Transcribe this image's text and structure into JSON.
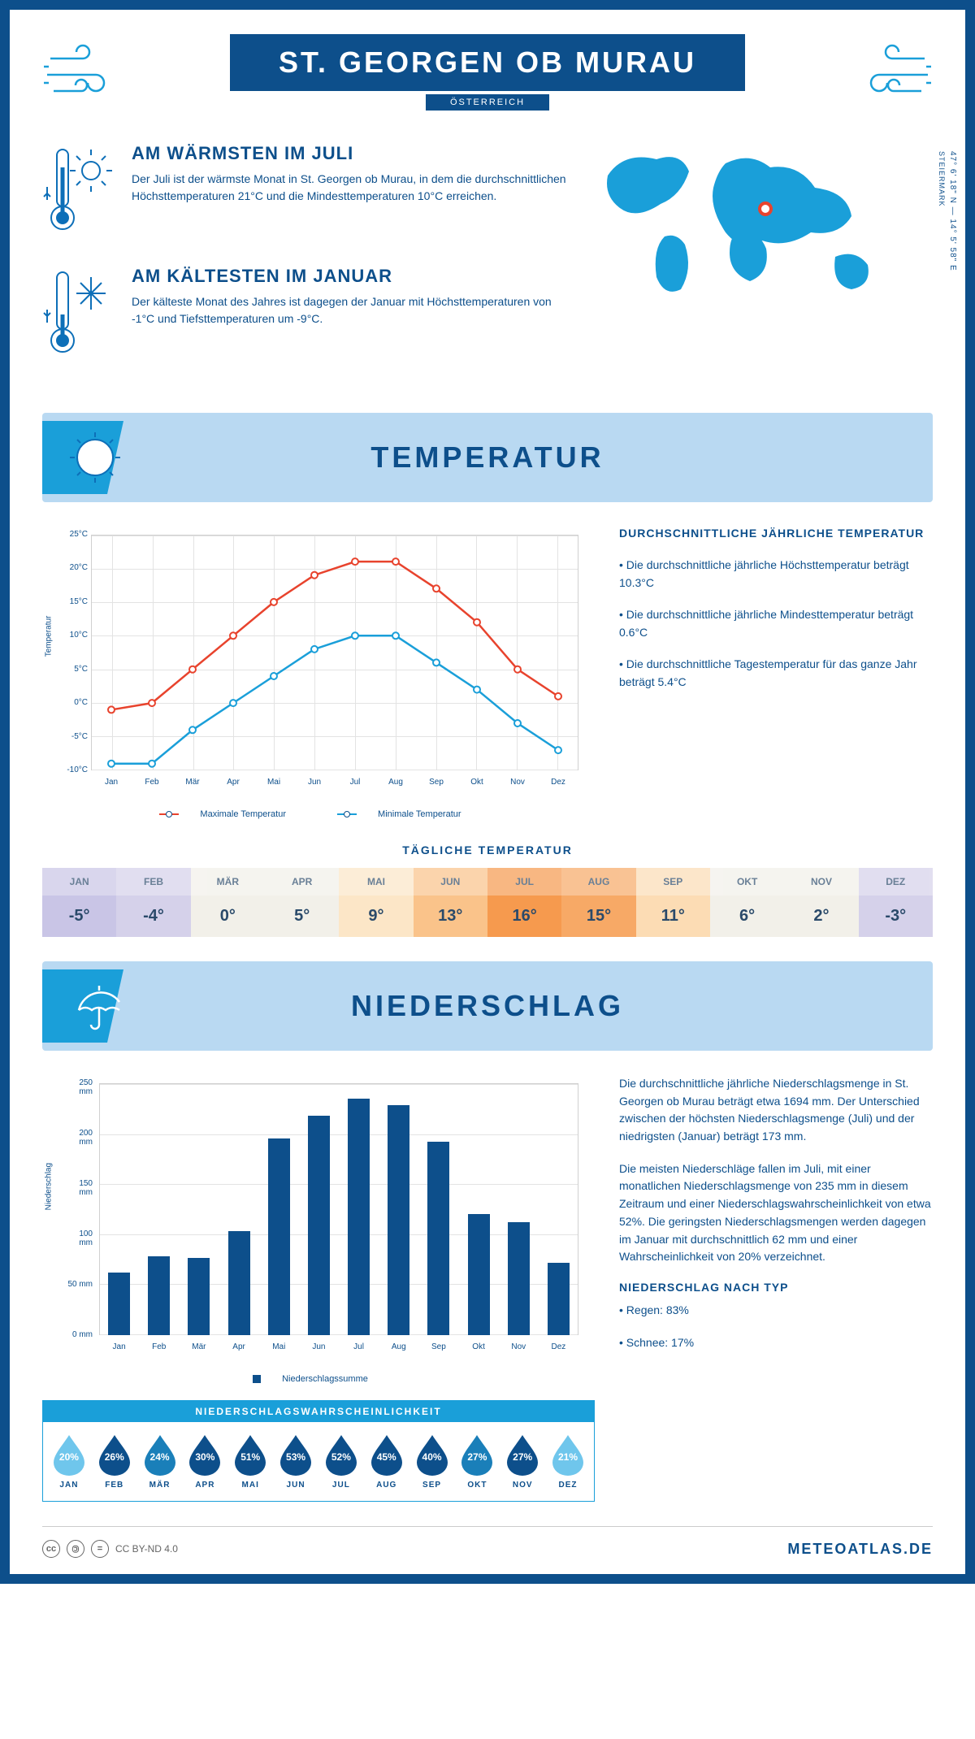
{
  "colors": {
    "primary": "#0d4f8b",
    "accent": "#1a9fd9",
    "band": "#b9d9f2",
    "line_max": "#e8432d",
    "line_min": "#1a9fd9",
    "bar": "#0d4f8b",
    "grid": "#e3e3e3"
  },
  "header": {
    "title": "ST. GEORGEN OB MURAU",
    "country": "ÖSTERREICH"
  },
  "location": {
    "coords": "47° 6' 18\" N — 14° 5' 58\" E",
    "region": "STEIERMARK"
  },
  "fact_warm": {
    "title": "AM WÄRMSTEN IM JULI",
    "text": "Der Juli ist der wärmste Monat in St. Georgen ob Murau, in dem die durchschnittlichen Höchsttemperaturen 21°C und die Mindesttemperaturen 10°C erreichen."
  },
  "fact_cold": {
    "title": "AM KÄLTESTEN IM JANUAR",
    "text": "Der kälteste Monat des Jahres ist dagegen der Januar mit Höchsttemperaturen von -1°C und Tiefsttemperaturen um -9°C."
  },
  "section_temp": "TEMPERATUR",
  "section_precip": "NIEDERSCHLAG",
  "temp_chart": {
    "type": "line",
    "ylabel": "Temperatur",
    "ymin": -10,
    "ymax": 25,
    "ystep": 5,
    "months": [
      "Jan",
      "Feb",
      "Mär",
      "Apr",
      "Mai",
      "Jun",
      "Jul",
      "Aug",
      "Sep",
      "Okt",
      "Nov",
      "Dez"
    ],
    "max_series": [
      -1,
      0,
      5,
      10,
      15,
      19,
      21,
      21,
      17,
      12,
      5,
      1
    ],
    "min_series": [
      -9,
      -9,
      -4,
      0,
      4,
      8,
      10,
      10,
      6,
      2,
      -3,
      -7
    ],
    "legend_max": "Maximale Temperatur",
    "legend_min": "Minimale Temperatur"
  },
  "temp_info": {
    "title": "DURCHSCHNITTLICHE JÄHRLICHE TEMPERATUR",
    "b1": "• Die durchschnittliche jährliche Höchsttemperatur beträgt 10.3°C",
    "b2": "• Die durchschnittliche jährliche Mindesttemperatur beträgt 0.6°C",
    "b3": "• Die durchschnittliche Tagestemperatur für das ganze Jahr beträgt 5.4°C"
  },
  "daily_title": "TÄGLICHE TEMPERATUR",
  "daily": {
    "months": [
      "JAN",
      "FEB",
      "MÄR",
      "APR",
      "MAI",
      "JUN",
      "JUL",
      "AUG",
      "SEP",
      "OKT",
      "NOV",
      "DEZ"
    ],
    "values": [
      "-5°",
      "-4°",
      "0°",
      "5°",
      "9°",
      "13°",
      "16°",
      "15°",
      "11°",
      "6°",
      "2°",
      "-3°"
    ],
    "colors": [
      "#c9c5e6",
      "#d5d1ea",
      "#f2f0e9",
      "#f2f0e9",
      "#fce6c7",
      "#fac38a",
      "#f69a4e",
      "#f7a966",
      "#fcdcb4",
      "#f2f0e9",
      "#f2f0e9",
      "#d5d1ea"
    ]
  },
  "precip_chart": {
    "type": "bar",
    "ylabel": "Niederschlag",
    "ymin": 0,
    "ymax": 250,
    "ystep": 50,
    "months": [
      "Jan",
      "Feb",
      "Mär",
      "Apr",
      "Mai",
      "Jun",
      "Jul",
      "Aug",
      "Sep",
      "Okt",
      "Nov",
      "Dez"
    ],
    "values": [
      62,
      78,
      77,
      103,
      195,
      218,
      235,
      228,
      192,
      120,
      112,
      72
    ],
    "legend": "Niederschlagssumme"
  },
  "precip_info": {
    "p1": "Die durchschnittliche jährliche Niederschlagsmenge in St. Georgen ob Murau beträgt etwa 1694 mm. Der Unterschied zwischen der höchsten Niederschlagsmenge (Juli) und der niedrigsten (Januar) beträgt 173 mm.",
    "p2": "Die meisten Niederschläge fallen im Juli, mit einer monatlichen Niederschlagsmenge von 235 mm in diesem Zeitraum und einer Niederschlagswahrscheinlichkeit von etwa 52%. Die geringsten Niederschlagsmengen werden dagegen im Januar mit durchschnittlich 62 mm und einer Wahrscheinlichkeit von 20% verzeichnet.",
    "type_title": "NIEDERSCHLAG NACH TYP",
    "type_rain": "• Regen: 83%",
    "type_snow": "• Schnee: 17%"
  },
  "prob": {
    "title": "NIEDERSCHLAGSWAHRSCHEINLICHKEIT",
    "months": [
      "JAN",
      "FEB",
      "MÄR",
      "APR",
      "MAI",
      "JUN",
      "JUL",
      "AUG",
      "SEP",
      "OKT",
      "NOV",
      "DEZ"
    ],
    "values": [
      "20%",
      "26%",
      "24%",
      "30%",
      "51%",
      "53%",
      "52%",
      "45%",
      "40%",
      "27%",
      "27%",
      "21%"
    ],
    "colors": [
      "#6fc6ec",
      "#0d4f8b",
      "#1a7fb9",
      "#0d4f8b",
      "#0d4f8b",
      "#0d4f8b",
      "#0d4f8b",
      "#0d4f8b",
      "#0d4f8b",
      "#1a7fb9",
      "#0d4f8b",
      "#6fc6ec"
    ]
  },
  "footer": {
    "license": "CC BY-ND 4.0",
    "brand": "METEOATLAS.DE"
  }
}
